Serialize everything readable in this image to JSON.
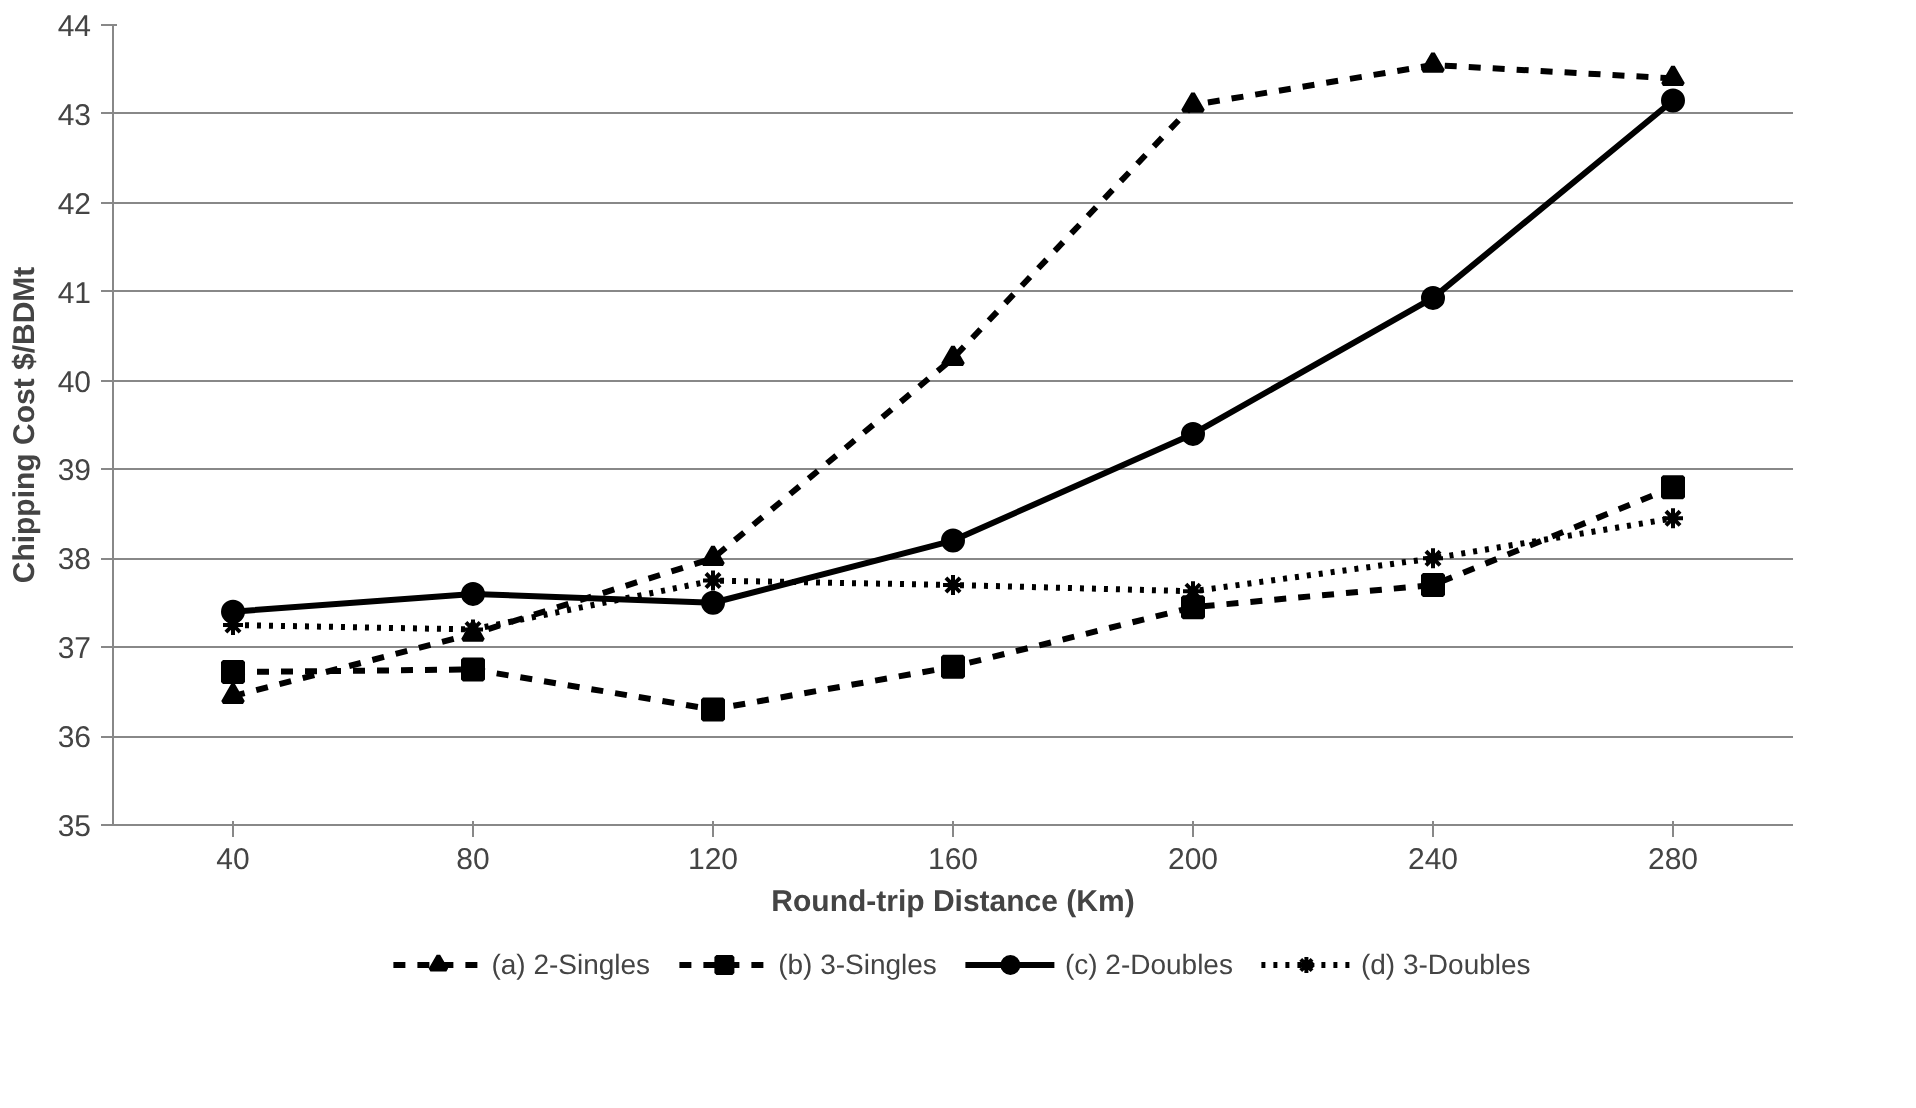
{
  "chart_data": {
    "type": "line",
    "xlabel": "Round-trip Distance (Km)",
    "ylabel": "Chipping Cost $/BDMt",
    "categories": [
      "40",
      "80",
      "120",
      "160",
      "200",
      "240",
      "280"
    ],
    "ylim": [
      35,
      44
    ],
    "yticks": [
      35,
      36,
      37,
      38,
      39,
      40,
      41,
      42,
      43,
      44
    ],
    "grid": "y",
    "legend": "bottom",
    "series": [
      {
        "name": "(a) 2-Singles",
        "color": "#000000",
        "marker": "triangle",
        "line_style": "dashed",
        "values": [
          36.45,
          37.15,
          38.0,
          40.25,
          43.1,
          43.55,
          43.4
        ]
      },
      {
        "name": "(b) 3-Singles",
        "color": "#000000",
        "marker": "square",
        "line_style": "dashed",
        "values": [
          36.72,
          36.75,
          36.3,
          36.78,
          37.45,
          37.7,
          38.8
        ]
      },
      {
        "name": "(c) 2-Doubles",
        "color": "#000000",
        "marker": "circle",
        "line_style": "solid",
        "values": [
          37.4,
          37.6,
          37.5,
          38.2,
          39.4,
          40.93,
          43.15
        ]
      },
      {
        "name": "(d) 3-Doubles",
        "color": "#000000",
        "marker": "cross",
        "line_style": "dotted",
        "values": [
          37.25,
          37.2,
          37.75,
          37.7,
          37.63,
          38.0,
          38.45
        ]
      }
    ]
  }
}
